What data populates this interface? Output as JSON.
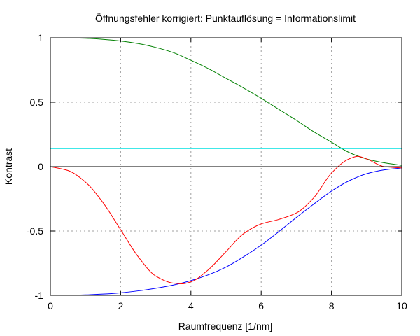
{
  "chart_data": {
    "type": "line",
    "title": "Öffnungsfehler korrigiert: Punktauflösung = Informationslimit",
    "xlabel": "Raumfrequenz [1/nm]",
    "ylabel": "Kontrast",
    "xlim": [
      0,
      10
    ],
    "ylim": [
      -1,
      1
    ],
    "xticks": [
      0,
      2,
      4,
      6,
      8,
      10
    ],
    "xtick_labels": [
      "0",
      "2",
      "4",
      "6",
      "8",
      "10"
    ],
    "yticks": [
      -1,
      -0.5,
      0,
      0.5,
      1
    ],
    "ytick_labels": [
      "-1",
      "-0.5",
      "0",
      "0.5",
      "1"
    ],
    "grid": true,
    "legend": "none",
    "series": [
      {
        "color": "#008000",
        "x": [
          0,
          0.5,
          1,
          1.5,
          2,
          2.5,
          3,
          3.5,
          4,
          4.5,
          5,
          5.5,
          6,
          6.5,
          7,
          7.5,
          8,
          8.5,
          9,
          9.5,
          10
        ],
        "y": [
          1.0,
          0.999,
          0.996,
          0.988,
          0.975,
          0.955,
          0.925,
          0.885,
          0.825,
          0.76,
          0.685,
          0.61,
          0.53,
          0.445,
          0.36,
          0.27,
          0.19,
          0.11,
          0.06,
          0.03,
          0.01
        ]
      },
      {
        "color": "#0000ff",
        "x": [
          0,
          0.5,
          1,
          1.5,
          2,
          2.5,
          3,
          3.5,
          4,
          4.5,
          5,
          5.5,
          6,
          6.5,
          7,
          7.5,
          8,
          8.5,
          9,
          9.5,
          10
        ],
        "y": [
          -1.0,
          -0.999,
          -0.996,
          -0.99,
          -0.98,
          -0.965,
          -0.945,
          -0.92,
          -0.885,
          -0.84,
          -0.78,
          -0.7,
          -0.61,
          -0.505,
          -0.395,
          -0.29,
          -0.19,
          -0.11,
          -0.055,
          -0.025,
          -0.01
        ]
      },
      {
        "color": "#ff0000",
        "x": [
          0,
          0.5,
          1,
          1.5,
          2,
          2.5,
          3,
          3.5,
          3.75,
          4,
          4.5,
          5,
          5.5,
          6,
          6.5,
          7,
          7.5,
          8,
          8.5,
          8.75,
          9,
          9.5,
          10
        ],
        "y": [
          0.0,
          -0.03,
          -0.12,
          -0.28,
          -0.49,
          -0.7,
          -0.85,
          -0.905,
          -0.91,
          -0.895,
          -0.8,
          -0.66,
          -0.52,
          -0.445,
          -0.41,
          -0.36,
          -0.24,
          -0.05,
          0.06,
          0.08,
          0.06,
          0.0,
          -0.01
        ]
      },
      {
        "color": "#00e0e0",
        "x": [
          0,
          10
        ],
        "y": [
          0.14,
          0.14
        ]
      },
      {
        "color": "#000000",
        "x": [
          0,
          10
        ],
        "y": [
          0.0,
          0.0
        ]
      }
    ]
  }
}
